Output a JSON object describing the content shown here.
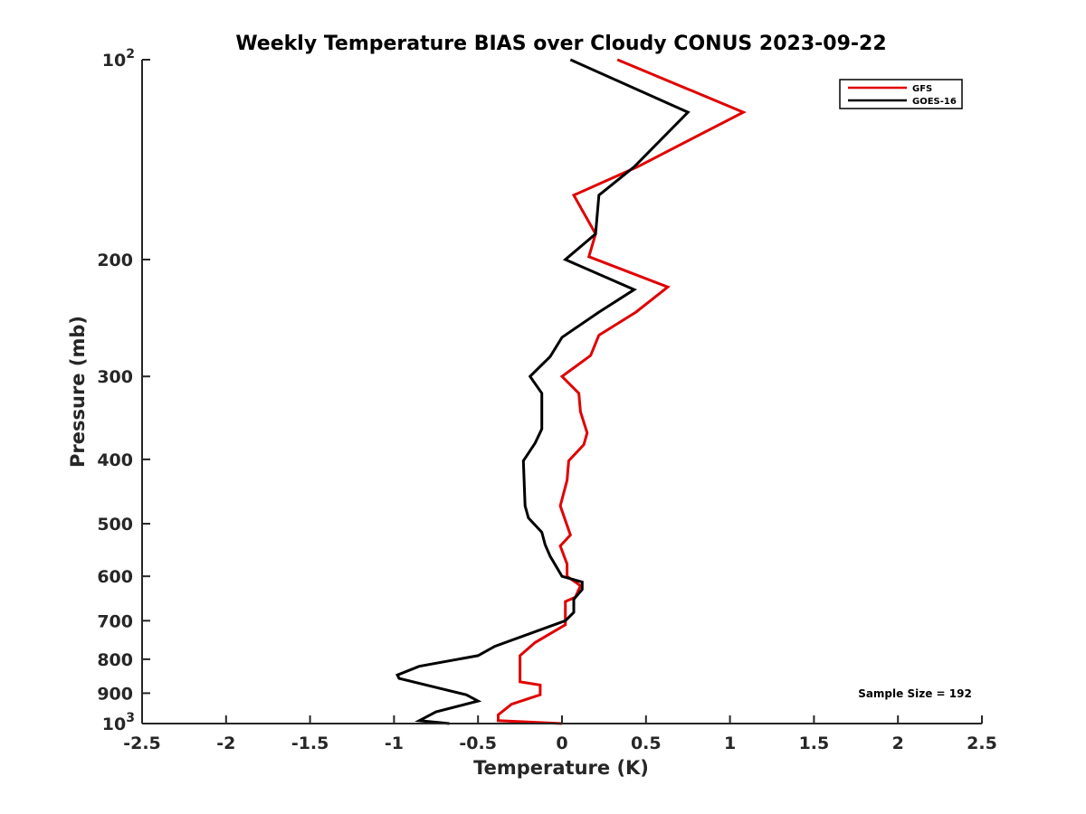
{
  "chart_data": {
    "type": "line",
    "title": "Weekly Temperature BIAS over Cloudy CONUS 2023-09-22",
    "xlabel": "Temperature (K)",
    "ylabel": "Pressure (mb)",
    "xlim": [
      -2.5,
      2.5
    ],
    "ylim": [
      100,
      1000
    ],
    "y_scale": "log",
    "y_reversed": true,
    "grid": false,
    "legend_position": "top-right",
    "x_ticks": [
      {
        "value": -2.5,
        "label": "-2.5"
      },
      {
        "value": -2,
        "label": "-2"
      },
      {
        "value": -1.5,
        "label": "-1.5"
      },
      {
        "value": -1,
        "label": "-1"
      },
      {
        "value": -0.5,
        "label": "-0.5"
      },
      {
        "value": 0,
        "label": "0"
      },
      {
        "value": 0.5,
        "label": "0.5"
      },
      {
        "value": 1,
        "label": "1"
      },
      {
        "value": 1.5,
        "label": "1.5"
      },
      {
        "value": 2,
        "label": "2"
      },
      {
        "value": 2.5,
        "label": "2.5"
      }
    ],
    "y_ticks": [
      {
        "value": 100,
        "label": "",
        "base": "10",
        "exp": "2"
      },
      {
        "value": 200,
        "label": "200"
      },
      {
        "value": 300,
        "label": "300"
      },
      {
        "value": 400,
        "label": "400"
      },
      {
        "value": 500,
        "label": "500"
      },
      {
        "value": 600,
        "label": "600"
      },
      {
        "value": 700,
        "label": "700"
      },
      {
        "value": 800,
        "label": "800"
      },
      {
        "value": 900,
        "label": "900"
      },
      {
        "value": 1000,
        "label": "",
        "base": "10",
        "exp": "3"
      }
    ],
    "series": [
      {
        "name": "GFS",
        "color": "#e00000",
        "points": [
          [
            0.33,
            100
          ],
          [
            1.08,
            120
          ],
          [
            0.45,
            145
          ],
          [
            0.07,
            160
          ],
          [
            0.2,
            183
          ],
          [
            0.16,
            198
          ],
          [
            0.63,
            220
          ],
          [
            0.44,
            240
          ],
          [
            0.22,
            260
          ],
          [
            0.17,
            279
          ],
          [
            0.0,
            300
          ],
          [
            0.1,
            318
          ],
          [
            0.11,
            339
          ],
          [
            0.15,
            365
          ],
          [
            0.13,
            380
          ],
          [
            0.04,
            402
          ],
          [
            0.03,
            430
          ],
          [
            -0.01,
            470
          ],
          [
            0.05,
            520
          ],
          [
            -0.01,
            540
          ],
          [
            0.03,
            575
          ],
          [
            0.03,
            600
          ],
          [
            0.11,
            620
          ],
          [
            0.08,
            645
          ],
          [
            0.02,
            655
          ],
          [
            0.02,
            710
          ],
          [
            -0.16,
            755
          ],
          [
            -0.25,
            790
          ],
          [
            -0.25,
            865
          ],
          [
            -0.13,
            875
          ],
          [
            -0.13,
            905
          ],
          [
            -0.3,
            935
          ],
          [
            -0.38,
            970
          ],
          [
            -0.38,
            990
          ],
          [
            0.0,
            1000
          ]
        ]
      },
      {
        "name": "GOES-16",
        "color": "#000000",
        "points": [
          [
            0.05,
            100
          ],
          [
            0.75,
            120
          ],
          [
            0.43,
            145
          ],
          [
            0.22,
            160
          ],
          [
            0.2,
            183
          ],
          [
            0.02,
            200
          ],
          [
            0.43,
            222
          ],
          [
            0.22,
            240
          ],
          [
            0.0,
            262
          ],
          [
            -0.07,
            280
          ],
          [
            -0.19,
            300
          ],
          [
            -0.12,
            318
          ],
          [
            -0.12,
            360
          ],
          [
            -0.16,
            378
          ],
          [
            -0.23,
            402
          ],
          [
            -0.22,
            470
          ],
          [
            -0.2,
            490
          ],
          [
            -0.12,
            515
          ],
          [
            -0.1,
            538
          ],
          [
            -0.07,
            560
          ],
          [
            0.0,
            600
          ],
          [
            0.12,
            612
          ],
          [
            0.12,
            628
          ],
          [
            0.07,
            650
          ],
          [
            0.07,
            680
          ],
          [
            0.02,
            700
          ],
          [
            -0.4,
            765
          ],
          [
            -0.5,
            790
          ],
          [
            -0.85,
            820
          ],
          [
            -0.98,
            845
          ],
          [
            -0.97,
            855
          ],
          [
            -0.57,
            905
          ],
          [
            -0.5,
            925
          ],
          [
            -0.75,
            960
          ],
          [
            -0.85,
            990
          ],
          [
            -0.67,
            1000
          ]
        ]
      }
    ],
    "annotations": [
      "Sample Size = 192"
    ]
  }
}
